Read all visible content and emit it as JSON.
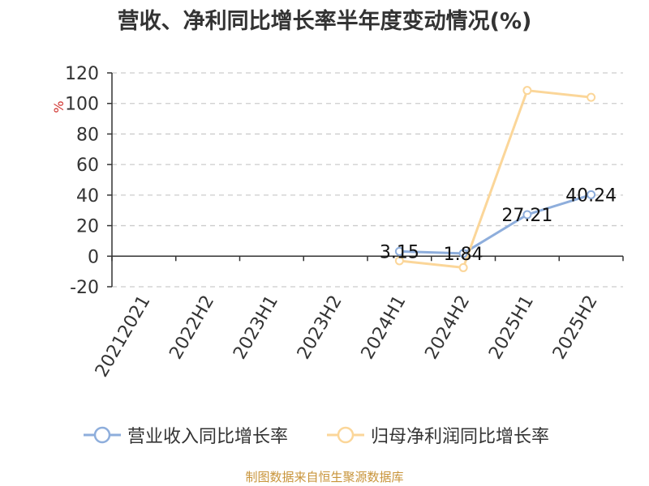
{
  "title": "营收、净利同比增长率半年度变动情况(%)",
  "source": "制图数据来自恒生聚源数据库",
  "colors": {
    "revenue": "#8eaedc",
    "profit": "#fbd699",
    "grid": "#cccccc",
    "axis": "#333333",
    "unit": "#d0312d",
    "source": "#c8943a"
  },
  "chart_data": {
    "type": "line",
    "title": "营收、净利同比增长率半年度变动情况(%)",
    "ylabel": "%",
    "categories": [
      "20212021",
      "2022H2",
      "2023H1",
      "2023H2",
      "2024H1",
      "2024H2",
      "2025H1",
      "2025H2"
    ],
    "ylim": [
      -20,
      120
    ],
    "yticks": [
      -20,
      0,
      20,
      40,
      60,
      80,
      100,
      120
    ],
    "grid": true,
    "legend_position": "bottom",
    "series": [
      {
        "name": "营业收入同比增长率",
        "values": [
          null,
          null,
          null,
          null,
          3.15,
          1.84,
          27.21,
          40.24
        ],
        "labels": [
          "",
          "",
          "",
          "",
          "3.15",
          "1.84",
          "27.21",
          "40.24"
        ]
      },
      {
        "name": "归母净利润同比增长率",
        "values": [
          null,
          null,
          null,
          null,
          -3.0,
          -7.5,
          108.5,
          104.0
        ],
        "labels": [
          "",
          "",
          "",
          "",
          "",
          "",
          "",
          ""
        ]
      }
    ]
  }
}
